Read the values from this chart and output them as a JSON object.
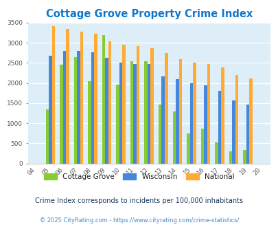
{
  "title": "Cottage Grove Property Crime Index",
  "years": [
    "04",
    "05",
    "06",
    "07",
    "08",
    "09",
    "10",
    "11",
    "12",
    "13",
    "14",
    "15",
    "16",
    "17",
    "18",
    "19",
    "20"
  ],
  "cottage_grove": [
    0,
    1350,
    2460,
    2650,
    2040,
    3190,
    1960,
    2550,
    2550,
    1470,
    1290,
    750,
    870,
    530,
    300,
    330,
    0
  ],
  "wisconsin": [
    0,
    2680,
    2800,
    2800,
    2760,
    2620,
    2500,
    2470,
    2480,
    2170,
    2090,
    2000,
    1950,
    1800,
    1560,
    1470,
    0
  ],
  "national": [
    0,
    3420,
    3340,
    3270,
    3220,
    3040,
    2950,
    2920,
    2860,
    2740,
    2600,
    2500,
    2480,
    2380,
    2200,
    2110,
    0
  ],
  "cottage_grove_color": "#88cc33",
  "wisconsin_color": "#4488dd",
  "national_color": "#ffaa33",
  "bg_color": "#ddeef8",
  "ylim": [
    0,
    3500
  ],
  "yticks": [
    0,
    500,
    1000,
    1500,
    2000,
    2500,
    3000,
    3500
  ],
  "subtitle": "Crime Index corresponds to incidents per 100,000 inhabitants",
  "footer": "© 2025 CityRating.com - https://www.cityrating.com/crime-statistics/",
  "title_color": "#1177cc",
  "subtitle_color": "#1a3a5c",
  "footer_color": "#4488cc"
}
